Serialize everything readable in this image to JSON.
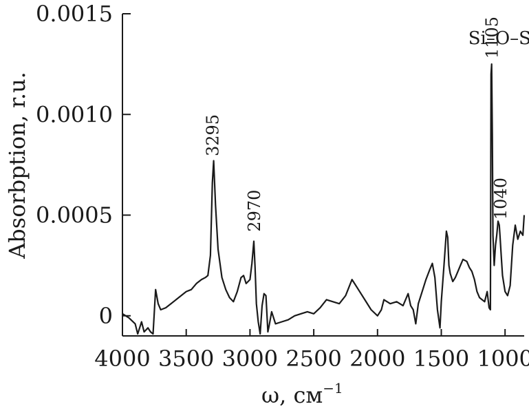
{
  "chart_data": {
    "type": "line",
    "xlabel": "ω, см",
    "xlabel_sup": "−1",
    "ylabel": "Absorbption, r.u.",
    "xlim": [
      4000,
      850
    ],
    "x_reversed": true,
    "ylim": [
      -0.0001,
      0.0015
    ],
    "x_ticks": [
      4000,
      3500,
      3000,
      2500,
      2000,
      1500,
      1000
    ],
    "x_tick_labels": [
      "4000",
      "3500",
      "3000",
      "2500",
      "2000",
      "1500",
      "1000"
    ],
    "y_ticks": [
      0,
      0.0005,
      0.001,
      0.0015
    ],
    "y_tick_labels": [
      "0",
      "0.0005",
      "0.0010",
      "0.0015"
    ],
    "grid": false,
    "annotations": [
      {
        "text": "3295",
        "x": 3295,
        "y": 0.000765,
        "orientation": "vertical"
      },
      {
        "text": "2970",
        "x": 2970,
        "y": 0.00039,
        "orientation": "vertical"
      },
      {
        "text": "1105",
        "x": 1105,
        "y": 0.00125,
        "orientation": "vertical"
      },
      {
        "text": "1040",
        "x": 1040,
        "y": 0.00045,
        "orientation": "vertical"
      },
      {
        "text": "Si–O–Si",
        "x": 1020,
        "y": 0.00135,
        "orientation": "horizontal"
      }
    ],
    "series": [
      {
        "x": [
          4000,
          3950,
          3900,
          3880,
          3850,
          3830,
          3800,
          3780,
          3760,
          3740,
          3720,
          3700,
          3660,
          3620,
          3580,
          3540,
          3500,
          3460,
          3420,
          3380,
          3350,
          3330,
          3310,
          3295,
          3285,
          3270,
          3250,
          3220,
          3190,
          3160,
          3130,
          3100,
          3070,
          3050,
          3030,
          3000,
          2985,
          2970,
          2960,
          2950,
          2935,
          2920,
          2905,
          2890,
          2875,
          2860,
          2850,
          2830,
          2800,
          2750,
          2700,
          2650,
          2600,
          2550,
          2500,
          2450,
          2400,
          2350,
          2300,
          2250,
          2200,
          2180,
          2150,
          2100,
          2050,
          2000,
          1970,
          1950,
          1900,
          1850,
          1800,
          1760,
          1740,
          1720,
          1700,
          1680,
          1650,
          1620,
          1590,
          1570,
          1550,
          1530,
          1510,
          1500,
          1480,
          1460,
          1450,
          1440,
          1430,
          1410,
          1390,
          1370,
          1350,
          1330,
          1300,
          1280,
          1260,
          1240,
          1220,
          1200,
          1180,
          1160,
          1140,
          1125,
          1115,
          1110,
          1105,
          1100,
          1095,
          1085,
          1075,
          1065,
          1055,
          1045,
          1040,
          1030,
          1020,
          1000,
          980,
          960,
          940,
          920,
          900,
          880,
          860,
          850
        ],
        "y": [
          1e-05,
          -1e-05,
          -4e-05,
          -9e-05,
          -3e-05,
          -8e-05,
          -6e-05,
          -8e-05,
          -9e-05,
          0.00013,
          6e-05,
          3e-05,
          4e-05,
          6e-05,
          8e-05,
          0.0001,
          0.00012,
          0.00013,
          0.00016,
          0.00018,
          0.00019,
          0.0002,
          0.0003,
          0.00066,
          0.00077,
          0.00055,
          0.00033,
          0.00019,
          0.00013,
          9e-05,
          7e-05,
          0.00012,
          0.00019,
          0.0002,
          0.00016,
          0.00018,
          0.00026,
          0.00037,
          0.00024,
          6e-05,
          -3e-05,
          -9e-05,
          5e-05,
          0.00011,
          0.0001,
          -8e-05,
          -5e-05,
          2e-05,
          -4e-05,
          -3e-05,
          -2e-05,
          0.0,
          1e-05,
          2e-05,
          1e-05,
          4e-05,
          8e-05,
          7e-05,
          6e-05,
          0.0001,
          0.00018,
          0.00016,
          0.00013,
          8e-05,
          3e-05,
          0.0,
          3e-05,
          8e-05,
          6e-05,
          7e-05,
          5e-05,
          0.00011,
          5e-05,
          3e-05,
          -4e-05,
          6e-05,
          0.00012,
          0.00018,
          0.00023,
          0.00026,
          0.00019,
          3e-05,
          -6e-05,
          7e-05,
          0.00024,
          0.00042,
          0.00039,
          0.00025,
          0.00021,
          0.00017,
          0.00019,
          0.00022,
          0.00025,
          0.00028,
          0.00027,
          0.00024,
          0.00022,
          0.00018,
          0.00012,
          9e-05,
          8e-05,
          7e-05,
          0.00012,
          4e-05,
          3e-05,
          0.0012,
          0.00125,
          0.0009,
          0.0004,
          0.00025,
          0.00035,
          0.0004,
          0.00047,
          0.00045,
          0.0004,
          0.0003,
          0.0002,
          0.00012,
          0.0001,
          0.00015,
          0.00035,
          0.00045,
          0.00038,
          0.00042,
          0.0004,
          0.0005
        ]
      }
    ]
  }
}
